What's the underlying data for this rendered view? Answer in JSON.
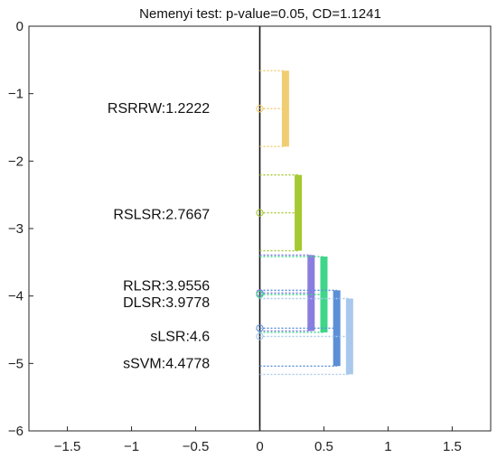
{
  "chart_data": {
    "type": "critical-difference",
    "title": "Nemenyi test: p-value=0.05, CD=1.1241",
    "xlim": [
      -1.8,
      1.8
    ],
    "ylim": [
      -6,
      0
    ],
    "xticks": [
      -1.5,
      -1,
      -0.5,
      0,
      0.5,
      1,
      1.5
    ],
    "xtick_labels": [
      "−1.5",
      "−1",
      "−0.5",
      "0",
      "0.5",
      "1",
      "1.5"
    ],
    "yticks": [
      0,
      -1,
      -2,
      -3,
      -4,
      -5,
      -6
    ],
    "ytick_labels": [
      "0",
      "−1",
      "−2",
      "−3",
      "−4",
      "−5",
      "−6"
    ],
    "methods": [
      {
        "label": "RSRRW:1.2222",
        "rank": 1.2222,
        "color": "#f0cd72",
        "bar_x": 0.2
      },
      {
        "label": "RSLSR:2.7667",
        "rank": 2.7667,
        "color": "#a6c832",
        "bar_x": 0.3
      },
      {
        "label": "RLSR:3.9556",
        "rank": 3.9556,
        "color": "#8a7de0",
        "bar_x": 0.4
      },
      {
        "label": "DLSR:3.9778",
        "rank": 3.9778,
        "color": "#3fd68a",
        "bar_x": 0.5
      },
      {
        "label": "sSVM:4.4778",
        "rank": 4.4778,
        "color": "#5b8fd6",
        "bar_x": 0.6
      },
      {
        "label": "sLSR:4.6",
        "rank": 4.6,
        "color": "#a9c8ec",
        "bar_x": 0.7
      }
    ],
    "label_positions": [
      {
        "label_index": 0,
        "y": -1.22
      },
      {
        "label_index": 1,
        "y": -2.79
      },
      {
        "label_index": 2,
        "y": -3.85
      },
      {
        "label_index": 3,
        "y": -4.1
      },
      {
        "label_index": 5,
        "y": -4.6
      },
      {
        "label_index": 4,
        "y": -5.0
      }
    ],
    "cd": 1.1241,
    "grid": false
  }
}
